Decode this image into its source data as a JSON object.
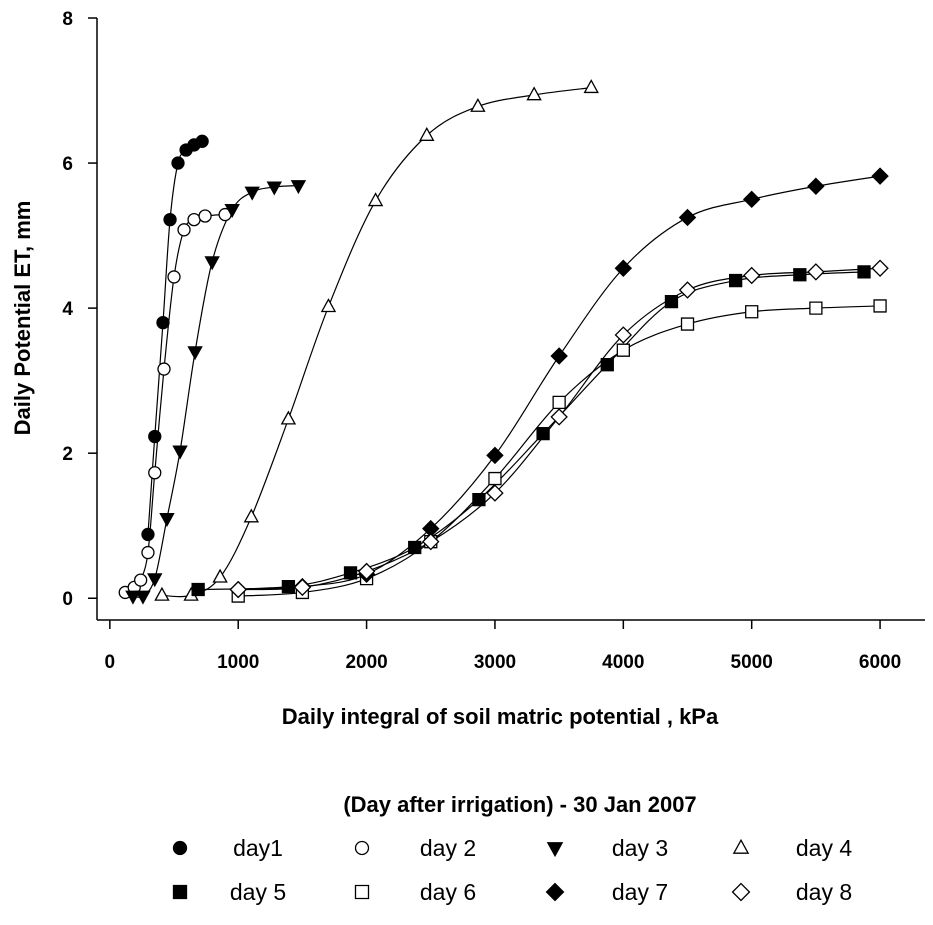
{
  "chart_data": {
    "type": "scatter",
    "xlabel": "Daily integral of soil matric potential , kPa",
    "ylabel": "Daily Potential ET, mm",
    "legend_title": "(Day after irrigation) - 30 Jan 2007",
    "legend": "bottom",
    "xlim": [
      -100,
      6350
    ],
    "ylim": [
      -0.3,
      8
    ],
    "xticks": [
      0,
      1000,
      2000,
      3000,
      4000,
      5000,
      6000
    ],
    "yticks": [
      0,
      2,
      4,
      6,
      8
    ],
    "series": [
      {
        "name": "day1",
        "marker": "circle",
        "filled": true,
        "color": "#000000",
        "x": [
          297,
          350,
          414,
          469,
          531,
          594,
          656,
          719
        ],
        "values": [
          0.88,
          2.23,
          3.8,
          5.22,
          6.0,
          6.18,
          6.25,
          6.3
        ]
      },
      {
        "name": "day 2",
        "marker": "circle",
        "filled": false,
        "color": "#000000",
        "x": [
          120,
          190,
          240,
          297,
          350,
          422,
          500,
          578,
          656,
          742,
          898
        ],
        "values": [
          0.08,
          0.15,
          0.25,
          0.63,
          1.73,
          3.16,
          4.43,
          5.08,
          5.22,
          5.27,
          5.29
        ]
      },
      {
        "name": "day 3",
        "marker": "triangle-down",
        "filled": true,
        "color": "#000000",
        "x": [
          180,
          258,
          350,
          445,
          547,
          664,
          797,
          953,
          1109,
          1281,
          1469
        ],
        "values": [
          0.03,
          0.03,
          0.27,
          1.1,
          2.03,
          3.4,
          4.64,
          5.36,
          5.6,
          5.67,
          5.69
        ]
      },
      {
        "name": "day 4",
        "marker": "triangle-up",
        "filled": false,
        "color": "#000000",
        "x": [
          406,
          633,
          859,
          1102,
          1391,
          1703,
          2070,
          2469,
          2867,
          3305,
          3750
        ],
        "values": [
          0.04,
          0.04,
          0.29,
          1.12,
          2.47,
          4.02,
          5.48,
          6.38,
          6.78,
          6.94,
          7.04
        ]
      },
      {
        "name": "day 5",
        "marker": "square",
        "filled": true,
        "color": "#000000",
        "x": [
          688,
          1391,
          1875,
          2375,
          2875,
          3375,
          3875,
          4375,
          4875,
          5375,
          5875
        ],
        "values": [
          0.12,
          0.16,
          0.35,
          0.7,
          1.36,
          2.27,
          3.22,
          4.09,
          4.38,
          4.46,
          4.5
        ]
      },
      {
        "name": "day 6",
        "marker": "square",
        "filled": false,
        "color": "#000000",
        "x": [
          1000,
          1500,
          2000,
          2500,
          3000,
          3500,
          4000,
          4500,
          5000,
          5500,
          6000
        ],
        "values": [
          0.03,
          0.08,
          0.27,
          0.78,
          1.65,
          2.7,
          3.42,
          3.78,
          3.95,
          4.0,
          4.03
        ]
      },
      {
        "name": "day 7",
        "marker": "diamond",
        "filled": true,
        "color": "#000000",
        "x": [
          1000,
          1500,
          2000,
          2500,
          3000,
          3500,
          4000,
          4500,
          5000,
          5500,
          6000
        ],
        "values": [
          0.12,
          0.16,
          0.33,
          0.96,
          1.97,
          3.34,
          4.55,
          5.25,
          5.5,
          5.68,
          5.82
        ]
      },
      {
        "name": "day 8",
        "marker": "diamond",
        "filled": false,
        "color": "#000000",
        "x": [
          1000,
          1500,
          2000,
          2500,
          3000,
          3500,
          4000,
          4500,
          5000,
          5500,
          6000
        ],
        "values": [
          0.12,
          0.15,
          0.37,
          0.78,
          1.45,
          2.5,
          3.63,
          4.25,
          4.45,
          4.5,
          4.55
        ]
      }
    ]
  }
}
